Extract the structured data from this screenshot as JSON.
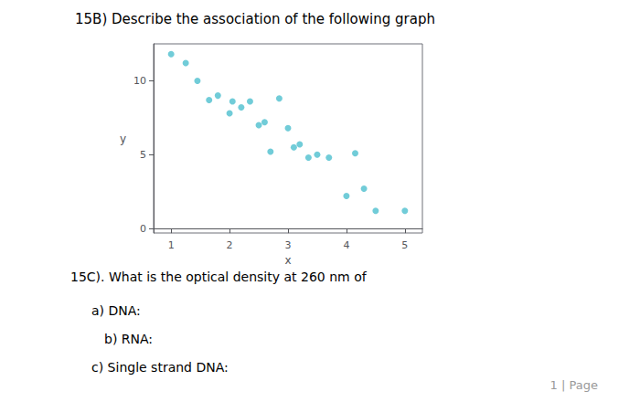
{
  "chart_data": {
    "type": "scatter",
    "title": "15B) Describe the association of the following graph",
    "xlabel": "x",
    "ylabel": "y",
    "x": [
      1.0,
      1.25,
      1.45,
      1.65,
      1.8,
      2.0,
      2.05,
      2.2,
      2.35,
      2.5,
      2.6,
      2.7,
      2.85,
      3.0,
      3.1,
      3.2,
      3.35,
      3.5,
      3.7,
      4.0,
      4.15,
      4.3,
      4.5,
      5.0
    ],
    "values": [
      11.8,
      11.2,
      10.0,
      8.7,
      9.0,
      7.8,
      8.6,
      8.2,
      8.6,
      7.0,
      7.2,
      5.2,
      8.8,
      6.8,
      5.5,
      5.7,
      4.8,
      5.0,
      4.8,
      2.2,
      5.1,
      2.7,
      1.2,
      1.2
    ],
    "color": "#4DBFCE",
    "xlim": [
      0.7,
      5.3
    ],
    "ylim": [
      -0.3,
      12.5
    ],
    "xticks": [
      1,
      2,
      3,
      4,
      5
    ],
    "yticks": [
      0,
      5,
      10
    ],
    "grid": false,
    "annotations": [
      "15C). What is the optical density at 260 nm of",
      "a) DNA:",
      "b) RNA:",
      "c) Single strand DNA:",
      "1 | Page"
    ]
  }
}
